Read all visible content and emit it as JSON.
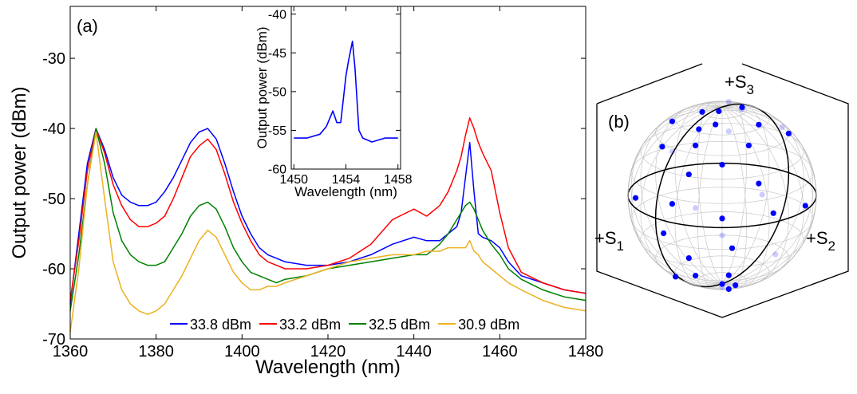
{
  "chart_data": [
    {
      "type": "line",
      "annotation": "(a)",
      "xlabel": "Wavelength (nm)",
      "ylabel": "Output power (dBm)",
      "xlim": [
        1360,
        1480
      ],
      "ylim": [
        -70,
        -22.6
      ],
      "xticks": [
        1360,
        1380,
        1400,
        1420,
        1440,
        1460,
        1480
      ],
      "yticks": [
        -70,
        -60,
        -50,
        -40,
        -30
      ],
      "legend": "bottom",
      "x": [
        1360,
        1362,
        1364,
        1366,
        1368,
        1370,
        1372,
        1374,
        1376,
        1378,
        1380,
        1382,
        1384,
        1386,
        1388,
        1390,
        1392,
        1394,
        1396,
        1398,
        1400,
        1402,
        1404,
        1406,
        1408,
        1410,
        1415,
        1420,
        1425,
        1430,
        1435,
        1440,
        1443,
        1446,
        1448,
        1450,
        1451,
        1452,
        1453,
        1454,
        1455,
        1456,
        1458,
        1460,
        1462,
        1465,
        1470,
        1475,
        1480
      ],
      "series": [
        {
          "name": "33.8 dBm",
          "color": "#0000ff",
          "values": [
            -65,
            -55,
            -45,
            -40,
            -43,
            -47,
            -49.5,
            -50.5,
            -51,
            -51,
            -50.5,
            -49,
            -47,
            -44.5,
            -42,
            -40.5,
            -40,
            -41.5,
            -45,
            -49,
            -52.5,
            -55,
            -57,
            -58,
            -58.5,
            -59,
            -59.5,
            -59.5,
            -59,
            -58,
            -56.5,
            -55.5,
            -56,
            -56,
            -55,
            -54,
            -52,
            -47,
            -42,
            -49,
            -55,
            -55.5,
            -56,
            -57,
            -59,
            -61,
            -62,
            -63,
            -63.5
          ]
        },
        {
          "name": "33.2 dBm",
          "color": "#ff0000",
          "values": [
            -64.5,
            -56,
            -46,
            -40,
            -43.5,
            -48,
            -51,
            -53,
            -54,
            -54,
            -53.5,
            -52.5,
            -50,
            -47,
            -44,
            -42.5,
            -41.5,
            -43,
            -46.5,
            -50.5,
            -53.5,
            -56,
            -58,
            -59,
            -59.5,
            -60,
            -60,
            -59.5,
            -58.5,
            -56.5,
            -53,
            -51.5,
            -52.5,
            -51,
            -49,
            -46,
            -44,
            -41,
            -38.5,
            -40,
            -42,
            -43.5,
            -46,
            -52,
            -57,
            -60.5,
            -62,
            -63,
            -63.5
          ]
        },
        {
          "name": "32.5 dBm",
          "color": "#008000",
          "values": [
            -66,
            -58,
            -48,
            -40,
            -45,
            -52,
            -56,
            -58,
            -59,
            -59.5,
            -59.5,
            -59,
            -57,
            -55,
            -52.5,
            -51,
            -50.5,
            -51.5,
            -54,
            -57,
            -59,
            -60.5,
            -61,
            -61.5,
            -62,
            -61.5,
            -61,
            -60,
            -59.5,
            -59,
            -58.5,
            -58,
            -58,
            -56.5,
            -55,
            -53,
            -52,
            -51,
            -50.5,
            -51.5,
            -53,
            -54.5,
            -56.5,
            -58,
            -60,
            -61.5,
            -63,
            -64,
            -64.5
          ]
        },
        {
          "name": "30.9 dBm",
          "color": "#edb120",
          "values": [
            -69,
            -60,
            -48,
            -40.5,
            -50,
            -59,
            -63,
            -65,
            -66,
            -66.5,
            -66,
            -65,
            -63,
            -61,
            -58.5,
            -56,
            -54.5,
            -55.5,
            -58,
            -60.5,
            -62,
            -63,
            -63,
            -62.5,
            -62.5,
            -62,
            -61,
            -60,
            -59,
            -58.5,
            -58,
            -58,
            -57.5,
            -57.5,
            -57,
            -57,
            -57,
            -57,
            -56,
            -57.5,
            -58,
            -59,
            -60,
            -61,
            -62,
            -63,
            -64.5,
            -65.5,
            -66
          ]
        }
      ]
    },
    {
      "type": "line",
      "xlabel": "Wavelength (nm)",
      "ylabel": "Output power (dBm)",
      "xlim": [
        1449.8,
        1458.2
      ],
      "ylim": [
        -60,
        -39
      ],
      "xticks": [
        1450,
        1454,
        1458
      ],
      "yticks": [
        -60,
        -55,
        -50,
        -45,
        -40
      ],
      "x": [
        1450,
        1451,
        1452,
        1452.5,
        1453,
        1453.3,
        1453.6,
        1454,
        1454.2,
        1454.5,
        1454.7,
        1455,
        1455.3,
        1456,
        1457,
        1458
      ],
      "series": [
        {
          "color": "#0000ff",
          "values": [
            -56,
            -56,
            -55.5,
            -54.5,
            -52.5,
            -54,
            -54,
            -48,
            -46,
            -43.5,
            -47,
            -55,
            -56,
            -56.5,
            -56,
            -56
          ]
        }
      ]
    },
    {
      "type": "sphere",
      "annotation": "(b)",
      "axis_labels": [
        {
          "text": "+S",
          "sub": "1"
        },
        {
          "text": "+S",
          "sub": "2"
        },
        {
          "text": "+S",
          "sub": "3"
        }
      ],
      "series": [
        {
          "color": "#0000ff",
          "s1": [
            0.1,
            0.2,
            -0.2,
            0.3,
            -0.3,
            0.45,
            -0.1,
            0.4,
            0.6,
            0.2,
            0.7,
            -0.5,
            0.55,
            0.8,
            0.3,
            0.95,
            0.9,
            0.2,
            0.7,
            0.98,
            -0.3,
            0.6,
            0.85,
            0.7,
            0.5,
            0.3,
            0.6,
            0.2,
            0.45,
            0.1,
            -0.6,
            -0.8,
            -0.7,
            -0.9,
            -0.4,
            -0.6,
            -0.2,
            -0.5
          ],
          "s2": [
            0.05,
            -0.1,
            0.1,
            0.2,
            -0.2,
            0.1,
            0.45,
            -0.35,
            0.2,
            0.6,
            -0.2,
            0.5,
            0.55,
            0.3,
            0.85,
            0.2,
            -0.4,
            0.97,
            0.7,
            0.1,
            0.95,
            0.75,
            0.35,
            0.3,
            0.6,
            0.5,
            -0.1,
            0.3,
            0.45,
            0.1,
            -0.3,
            0.1,
            -0.6,
            -0.3,
            -0.8,
            0.2,
            -0.95,
            -0.5
          ],
          "s3": [
            0.99,
            0.97,
            0.97,
            0.93,
            0.93,
            0.89,
            0.89,
            0.85,
            0.77,
            0.77,
            0.68,
            0.7,
            0.63,
            0.52,
            0.43,
            0.2,
            0.1,
            0.1,
            0.1,
            -0.15,
            0.05,
            -0.25,
            -0.4,
            -0.65,
            -0.62,
            -0.81,
            -0.79,
            -0.93,
            -0.77,
            -0.99,
            0.74,
            0.59,
            0.39,
            -0.3,
            -0.45,
            -0.77,
            0.2,
            -0.71
          ]
        }
      ]
    }
  ]
}
